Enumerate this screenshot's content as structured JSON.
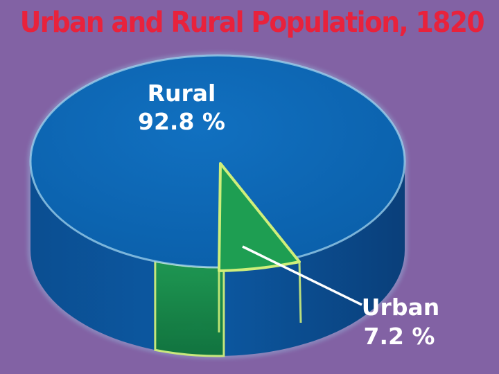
{
  "colors": {
    "background": "#8262a4",
    "title": "#e8223c",
    "rural": "#0a63b0",
    "urban": "#1e9e52",
    "rim_glow": "#9fd3ee",
    "urban_glow": "#cfee7a",
    "label_text": "#ffffff",
    "leader_line": "#ffffff"
  },
  "chart_data": {
    "type": "pie",
    "title": "Urban and Rural Population, 1820",
    "slices": [
      {
        "label": "Rural",
        "value": 92.8,
        "value_text": "92.8 %",
        "color": "#0a63b0"
      },
      {
        "label": "Urban",
        "value": 7.2,
        "value_text": "7.2 %",
        "color": "#1e9e52"
      }
    ],
    "style": "3d"
  }
}
